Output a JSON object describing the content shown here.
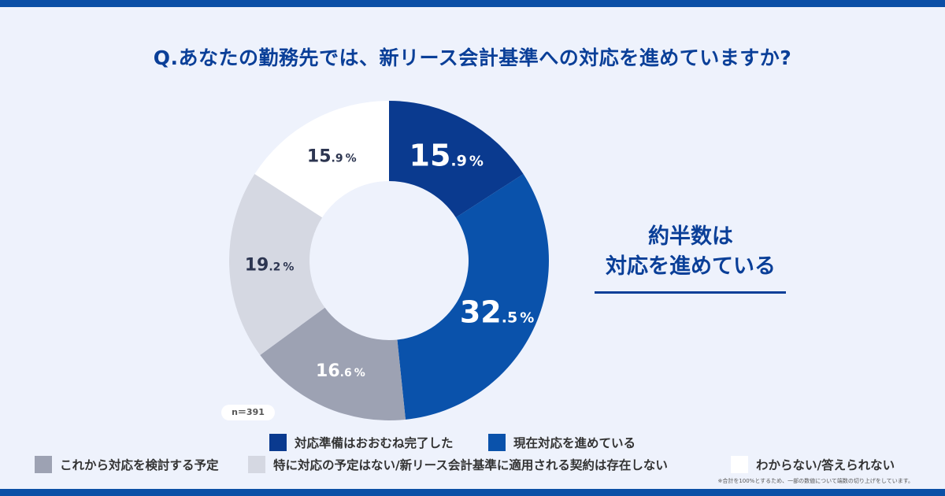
{
  "title": "Q.あなたの勤務先では、新リース会計基準への対応を進めていますか?",
  "callout": {
    "line1": "約半数は",
    "line2": "対応を進めている"
  },
  "sample_size": "n＝391",
  "note": "※合計を100%とするため、一部の数値について端数の切り上げをしています。",
  "colors": {
    "accent": "#0a3f98",
    "bar": "#0b4fa6",
    "text_dark": "#333333",
    "label_dark": "#2c3550"
  },
  "chart_data": {
    "type": "pie",
    "variant": "donut",
    "start": "top",
    "direction": "clockwise",
    "series": [
      {
        "name": "対応準備はおおむね完了した",
        "int": "15",
        "dec": ".9",
        "pct": "%",
        "value": 15.9,
        "color": "#0a3a8f",
        "label_color": "#ffffff",
        "label_size": "large"
      },
      {
        "name": "現在対応を進めている",
        "int": "32",
        "dec": ".5",
        "pct": "%",
        "value": 32.5,
        "color": "#0a52ab",
        "label_color": "#ffffff",
        "label_size": "large"
      },
      {
        "name": "これから対応を検討する予定",
        "int": "16",
        "dec": ".6",
        "pct": "%",
        "value": 16.6,
        "color": "#9da2b3",
        "label_color": "#ffffff",
        "label_size": "small"
      },
      {
        "name": "特に対応の予定はない/新リース会計基準に適用される契約は存在しない",
        "int": "19",
        "dec": ".2",
        "pct": "%",
        "value": 19.2,
        "color": "#d5d8e2",
        "label_color": "#2c3550",
        "label_size": "small"
      },
      {
        "name": "わからない/答えられない",
        "int": "15",
        "dec": ".9",
        "pct": "%",
        "value": 15.9,
        "color": "#ffffff",
        "label_color": "#2c3550",
        "label_size": "small"
      }
    ]
  }
}
